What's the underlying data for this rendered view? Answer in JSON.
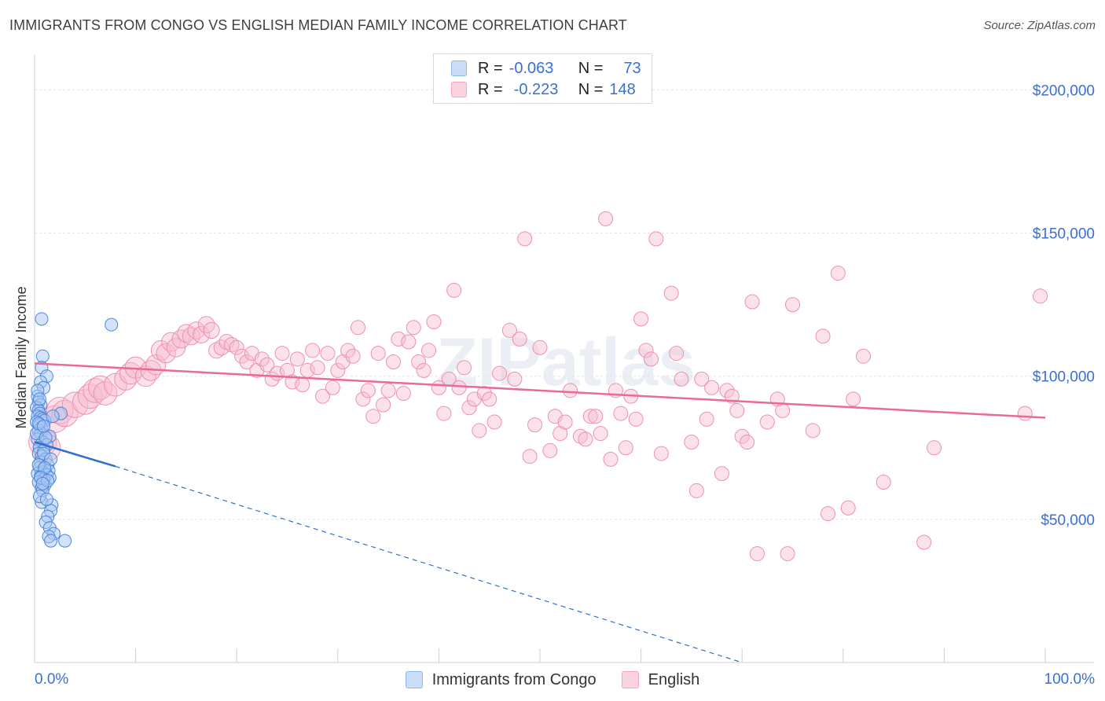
{
  "header": {
    "title": "IMMIGRANTS FROM CONGO VS ENGLISH MEDIAN FAMILY INCOME CORRELATION CHART",
    "source": "Source: ZipAtlas.com"
  },
  "watermark": "ZIPatlas",
  "legend": {
    "rows": [
      {
        "r_label": "R =",
        "r_value": "-0.063",
        "n_label": "N =",
        "n_value": "73",
        "color": "#8fb7f0"
      },
      {
        "r_label": "R =",
        "r_value": "-0.223",
        "n_label": "N =",
        "n_value": "148",
        "color": "#f4a7bf"
      }
    ]
  },
  "bottom_legend": [
    {
      "label": "Immigrants from Congo",
      "color": "#8fb7f0"
    },
    {
      "label": "English",
      "color": "#f4a7bf"
    }
  ],
  "chart_data": {
    "type": "scatter",
    "title": "IMMIGRANTS FROM CONGO VS ENGLISH MEDIAN FAMILY INCOME CORRELATION CHART",
    "xlabel": "",
    "ylabel": "Median Family Income",
    "xlim": [
      0,
      100
    ],
    "ylim": [
      0,
      210000
    ],
    "x_tick_labels": [
      "0.0%",
      "100.0%"
    ],
    "y_ticks": [
      50000,
      100000,
      150000,
      200000
    ],
    "y_tick_labels": [
      "$50,000",
      "$100,000",
      "$150,000",
      "$200,000"
    ],
    "grid": true,
    "colors": {
      "congo_fill": "#a9c8f3",
      "congo_stroke": "#4a86dc",
      "congo_line": "#2f6fd0",
      "english_fill": "#f7bcd0",
      "english_stroke": "#ef8fb0",
      "english_line": "#e8699a",
      "axis_text": "#3a6fd6"
    },
    "series": [
      {
        "name": "Immigrants from Congo",
        "R": -0.063,
        "N": 73,
        "trend_solid": [
          [
            0,
            77000
          ],
          [
            8,
            68500
          ]
        ],
        "trend_dashed": [
          [
            8,
            68500
          ],
          [
            70,
            0
          ]
        ],
        "points": [
          [
            0.7,
            120000
          ],
          [
            0.8,
            107000
          ],
          [
            0.7,
            103000
          ],
          [
            1.2,
            100000
          ],
          [
            0.6,
            98000
          ],
          [
            0.9,
            96000
          ],
          [
            0.3,
            93000
          ],
          [
            0.4,
            91000
          ],
          [
            0.6,
            90000
          ],
          [
            0.2,
            89000
          ],
          [
            0.4,
            88000
          ],
          [
            0.5,
            87000
          ],
          [
            0.3,
            86000
          ],
          [
            0.6,
            85500
          ],
          [
            0.8,
            85000
          ],
          [
            1.0,
            84500
          ],
          [
            0.2,
            84000
          ],
          [
            0.5,
            83000
          ],
          [
            0.7,
            82000
          ],
          [
            0.4,
            81000
          ],
          [
            0.6,
            80000
          ],
          [
            1.5,
            79000
          ],
          [
            0.3,
            78000
          ],
          [
            0.8,
            77000
          ],
          [
            1.2,
            76000
          ],
          [
            0.5,
            75000
          ],
          [
            0.9,
            74000
          ],
          [
            0.4,
            73000
          ],
          [
            0.7,
            72000
          ],
          [
            1.1,
            71000
          ],
          [
            0.6,
            70000
          ],
          [
            1.3,
            69000
          ],
          [
            0.5,
            68000
          ],
          [
            0.9,
            67500
          ],
          [
            1.4,
            67000
          ],
          [
            0.8,
            66500
          ],
          [
            0.3,
            66000
          ],
          [
            1.2,
            65500
          ],
          [
            0.6,
            65000
          ],
          [
            1.5,
            64500
          ],
          [
            0.9,
            64000
          ],
          [
            0.4,
            63000
          ],
          [
            1.0,
            62000
          ],
          [
            0.7,
            61000
          ],
          [
            0.8,
            60000
          ],
          [
            0.7,
            56000
          ],
          [
            1.7,
            55000
          ],
          [
            1.6,
            53000
          ],
          [
            1.3,
            51000
          ],
          [
            1.1,
            49000
          ],
          [
            1.5,
            47000
          ],
          [
            1.9,
            45000
          ],
          [
            1.4,
            44000
          ],
          [
            1.6,
            42500
          ],
          [
            3.0,
            42500
          ],
          [
            7.6,
            118000
          ],
          [
            2.6,
            87000
          ],
          [
            0.3,
            95000
          ],
          [
            0.5,
            92000
          ],
          [
            1.8,
            86000
          ],
          [
            0.2,
            80000
          ],
          [
            0.9,
            73000
          ],
          [
            1.6,
            71000
          ],
          [
            0.4,
            69000
          ],
          [
            1.0,
            68000
          ],
          [
            0.6,
            64500
          ],
          [
            1.3,
            63500
          ],
          [
            0.8,
            62500
          ],
          [
            0.5,
            58000
          ],
          [
            1.2,
            57000
          ],
          [
            0.4,
            83500
          ],
          [
            0.9,
            82500
          ],
          [
            1.1,
            78500
          ]
        ]
      },
      {
        "name": "English",
        "R": -0.223,
        "N": 148,
        "trend_solid": [
          [
            0,
            104500
          ],
          [
            100,
            85500
          ]
        ],
        "points": [
          [
            0.8,
            77000
          ],
          [
            1.2,
            75000
          ],
          [
            2.0,
            85000
          ],
          [
            2.5,
            88000
          ],
          [
            3.0,
            87000
          ],
          [
            4.0,
            90000
          ],
          [
            5.0,
            91000
          ],
          [
            5.5,
            93000
          ],
          [
            6.0,
            95000
          ],
          [
            6.5,
            96000
          ],
          [
            7.0,
            94000
          ],
          [
            8.0,
            97000
          ],
          [
            9.0,
            99000
          ],
          [
            9.5,
            101000
          ],
          [
            10.0,
            103000
          ],
          [
            11.0,
            100000
          ],
          [
            11.5,
            102000
          ],
          [
            12.0,
            104000
          ],
          [
            12.5,
            109000
          ],
          [
            13.0,
            108000
          ],
          [
            13.5,
            112000
          ],
          [
            14.0,
            110000
          ],
          [
            14.5,
            113000
          ],
          [
            15.0,
            115000
          ],
          [
            15.5,
            114000
          ],
          [
            16.0,
            116000
          ],
          [
            16.5,
            114500
          ],
          [
            17.0,
            118000
          ],
          [
            17.5,
            116000
          ],
          [
            18.0,
            109000
          ],
          [
            18.5,
            110000
          ],
          [
            19.0,
            112000
          ],
          [
            19.5,
            111000
          ],
          [
            20.0,
            110000
          ],
          [
            20.5,
            107000
          ],
          [
            21.0,
            105000
          ],
          [
            21.5,
            108000
          ],
          [
            22.0,
            102000
          ],
          [
            22.5,
            106000
          ],
          [
            23.0,
            104000
          ],
          [
            23.5,
            99000
          ],
          [
            24.0,
            101000
          ],
          [
            24.5,
            108000
          ],
          [
            25.0,
            102000
          ],
          [
            25.5,
            98000
          ],
          [
            26.0,
            106000
          ],
          [
            26.5,
            97000
          ],
          [
            27.0,
            102000
          ],
          [
            27.5,
            109000
          ],
          [
            28.0,
            103000
          ],
          [
            28.5,
            93000
          ],
          [
            29.0,
            108000
          ],
          [
            29.5,
            96000
          ],
          [
            30.0,
            102000
          ],
          [
            30.5,
            105000
          ],
          [
            31.0,
            109000
          ],
          [
            31.5,
            107000
          ],
          [
            32.0,
            117000
          ],
          [
            32.5,
            92000
          ],
          [
            33.0,
            95000
          ],
          [
            33.5,
            86000
          ],
          [
            34.0,
            108000
          ],
          [
            34.5,
            90000
          ],
          [
            35.0,
            95000
          ],
          [
            35.5,
            105000
          ],
          [
            36.0,
            113000
          ],
          [
            36.5,
            94000
          ],
          [
            37.0,
            112000
          ],
          [
            37.5,
            117000
          ],
          [
            38.0,
            105000
          ],
          [
            38.5,
            102000
          ],
          [
            39.0,
            109000
          ],
          [
            39.5,
            119000
          ],
          [
            40.0,
            96000
          ],
          [
            40.5,
            87000
          ],
          [
            41.0,
            99000
          ],
          [
            41.5,
            130000
          ],
          [
            42.0,
            96000
          ],
          [
            42.5,
            103000
          ],
          [
            43.0,
            89000
          ],
          [
            43.5,
            92000
          ],
          [
            44.0,
            81000
          ],
          [
            44.5,
            94000
          ],
          [
            45.0,
            92000
          ],
          [
            45.5,
            84000
          ],
          [
            46.0,
            101000
          ],
          [
            47.0,
            116000
          ],
          [
            47.5,
            99000
          ],
          [
            48.0,
            113000
          ],
          [
            48.5,
            148000
          ],
          [
            49.0,
            72000
          ],
          [
            49.5,
            83000
          ],
          [
            50.0,
            110000
          ],
          [
            51.0,
            74000
          ],
          [
            51.5,
            86000
          ],
          [
            52.0,
            80000
          ],
          [
            52.5,
            84000
          ],
          [
            53.0,
            95000
          ],
          [
            54.0,
            79000
          ],
          [
            54.5,
            78000
          ],
          [
            55.0,
            86000
          ],
          [
            55.5,
            86000
          ],
          [
            56.0,
            80000
          ],
          [
            56.5,
            155000
          ],
          [
            57.0,
            71000
          ],
          [
            57.5,
            95000
          ],
          [
            58.0,
            87000
          ],
          [
            58.5,
            75000
          ],
          [
            59.0,
            93000
          ],
          [
            59.5,
            85000
          ],
          [
            60.0,
            120000
          ],
          [
            60.5,
            109000
          ],
          [
            61.0,
            106000
          ],
          [
            61.5,
            148000
          ],
          [
            62.0,
            73000
          ],
          [
            63.0,
            129000
          ],
          [
            63.5,
            108000
          ],
          [
            64.0,
            99000
          ],
          [
            65.0,
            77000
          ],
          [
            65.5,
            60000
          ],
          [
            66.0,
            99000
          ],
          [
            66.5,
            85000
          ],
          [
            67.0,
            96000
          ],
          [
            68.0,
            66000
          ],
          [
            68.5,
            95000
          ],
          [
            69.0,
            93000
          ],
          [
            69.5,
            88000
          ],
          [
            70.0,
            79000
          ],
          [
            70.5,
            77000
          ],
          [
            71.0,
            126000
          ],
          [
            71.5,
            38000
          ],
          [
            72.5,
            84000
          ],
          [
            73.5,
            92000
          ],
          [
            74.0,
            88000
          ],
          [
            74.5,
            38000
          ],
          [
            75.0,
            125000
          ],
          [
            77.0,
            81000
          ],
          [
            78.0,
            114000
          ],
          [
            78.5,
            52000
          ],
          [
            79.5,
            136000
          ],
          [
            80.5,
            54000
          ],
          [
            81.0,
            92000
          ],
          [
            82.0,
            107000
          ],
          [
            84.0,
            63000
          ],
          [
            88.0,
            42000
          ],
          [
            89.0,
            75000
          ],
          [
            98.0,
            87000
          ],
          [
            99.5,
            128000
          ]
        ]
      }
    ]
  }
}
